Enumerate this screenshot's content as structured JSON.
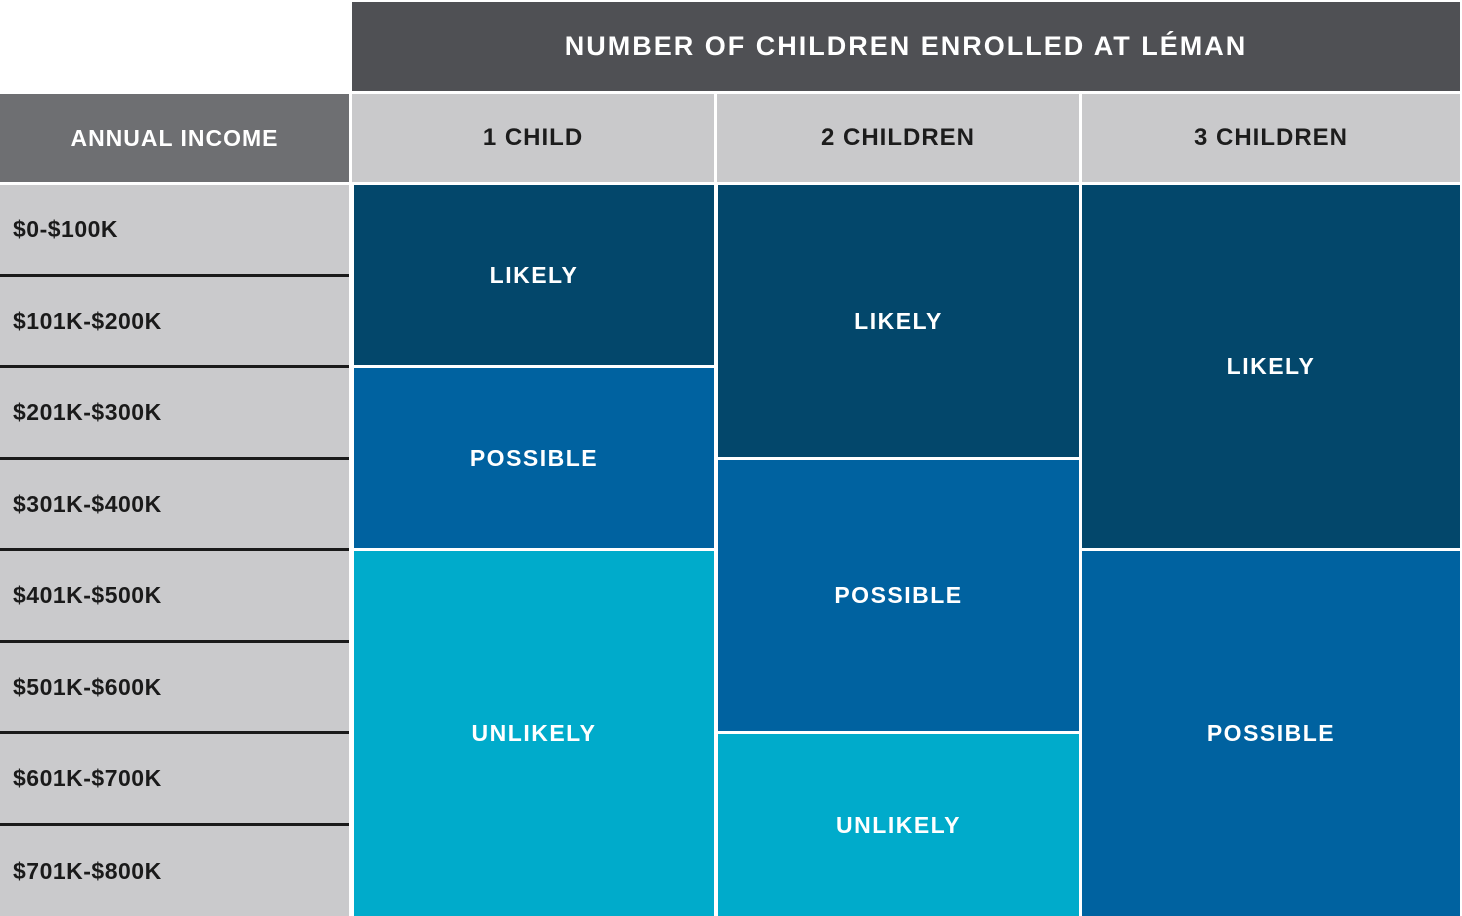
{
  "title": "NUMBER OF CHILDREN ENROLLED AT LÉMAN",
  "income_header": "ANNUAL INCOME",
  "columns": [
    "1 CHILD",
    "2  CHILDREN",
    "3 CHILDREN"
  ],
  "income_rows": [
    "$0-$100K",
    "$101K-$200K",
    "$201K-$300K",
    "$301K-$400K",
    "$401K-$500K",
    "$501K-$600K",
    "$601K-$700K",
    "$701K-$800K"
  ],
  "bands": {
    "col1": [
      {
        "label": "LIKELY",
        "rows": "$0-$100K to $101K-$200K"
      },
      {
        "label": "POSSIBLE",
        "rows": "$201K-$300K to $301K-$400K"
      },
      {
        "label": "UNLIKELY",
        "rows": "$401K-$500K to $701K-$800K"
      }
    ],
    "col2": [
      {
        "label": "LIKELY",
        "rows": "$0-$100K to $201K-$300K"
      },
      {
        "label": "POSSIBLE",
        "rows": "$301K-$400K to $501K-$600K"
      },
      {
        "label": "UNLIKELY",
        "rows": "$601K-$700K to $701K-$800K"
      }
    ],
    "col3": [
      {
        "label": "LIKELY",
        "rows": "$0-$100K to $301K-$400K"
      },
      {
        "label": "POSSIBLE",
        "rows": "$401K-$500K to $701K-$800K"
      }
    ]
  },
  "colors": {
    "likely": "#03476b",
    "possible": "#0062a0",
    "unlikely": "#00abcb",
    "header_dark": "#4f5054",
    "header_mid": "#6e6f72",
    "header_light": "#c9c9cb"
  }
}
